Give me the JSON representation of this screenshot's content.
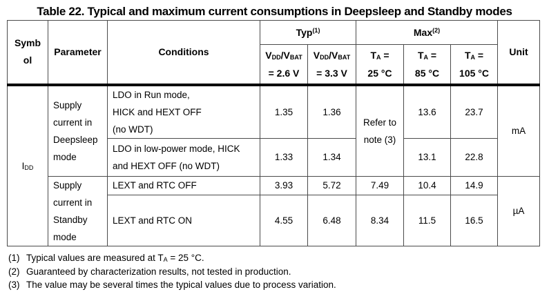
{
  "title": "Table 22. Typical and maximum current consumptions in Deepsleep and Standby modes",
  "header": {
    "symbol": "Symbol",
    "parameter": "Parameter",
    "conditions": "Conditions",
    "typ_group": "Typ^{(1)}",
    "max_group": "Max^{(2)}",
    "unit": "Unit",
    "subheaders": [
      {
        "line1": "V_{DD}/V_{BAT}",
        "line2": "= 2.6 V"
      },
      {
        "line1": "V_{DD}/V_{BAT}",
        "line2": "= 3.3 V"
      },
      {
        "line1": "T_{A} =",
        "line2": "25 °C"
      },
      {
        "line1": "T_{A} =",
        "line2": "85 °C"
      },
      {
        "line1": "T_{A} =",
        "line2": "105 °C"
      }
    ]
  },
  "rows": [
    {
      "symbol": "I_{DD}",
      "parameter_lines": [
        "Supply",
        "current in",
        "Deepsleep",
        "mode"
      ],
      "conditions_lines": [
        "LDO in Run mode,",
        "HICK and HEXT OFF",
        "(no WDT)"
      ],
      "typ_vdd_2_6": "1.35",
      "typ_vdd_3_3": "1.36",
      "max_ta_25": "Refer to note (3)",
      "max_ta_85": "13.6",
      "max_ta_105": "23.7",
      "unit": "mA"
    },
    {
      "conditions_lines": [
        "LDO in low-power mode, HICK",
        "and HEXT OFF (no WDT)"
      ],
      "typ_vdd_2_6": "1.33",
      "typ_vdd_3_3": "1.34",
      "max_ta_85": "13.1",
      "max_ta_105": "22.8"
    },
    {
      "parameter_lines": [
        "Supply",
        "current in",
        "Standby",
        "mode"
      ],
      "conditions_lines": [
        "LEXT and RTC OFF"
      ],
      "typ_vdd_2_6": "3.93",
      "typ_vdd_3_3": "5.72",
      "max_ta_25": "7.49",
      "max_ta_85": "10.4",
      "max_ta_105": "14.9",
      "unit": "µA"
    },
    {
      "conditions_lines": [
        "LEXT and RTC ON"
      ],
      "typ_vdd_2_6": "4.55",
      "typ_vdd_3_3": "6.48",
      "max_ta_25": "8.34",
      "max_ta_85": "11.5",
      "max_ta_105": "16.5"
    }
  ],
  "footnotes": [
    {
      "num": "(1)",
      "text": "Typical values are measured at T_{A} = 25 °C."
    },
    {
      "num": "(2)",
      "text": "Guaranteed by characterization results, not tested in production."
    },
    {
      "num": "(3)",
      "text": "The value may be several times the typical values due to process variation."
    }
  ]
}
